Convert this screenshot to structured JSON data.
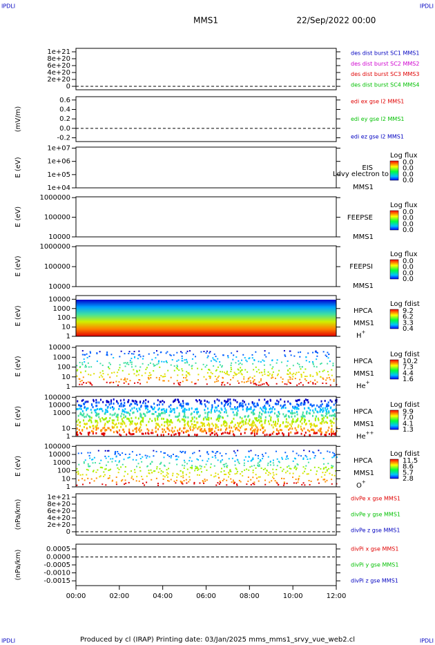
{
  "corner": "IPDLI",
  "header": {
    "spacecraft": "MMS1",
    "date": "22/Sep/2022 00:00"
  },
  "footer": "Produced by cl (IRAP)   Printing date: 03/Jan/2025   mms_mms1_srvy_vue_web2.cl",
  "overlap_text": "Ldvy electron to",
  "chart_data": [
    {
      "type": "line",
      "ylim": [
        -1e+20,
        1.1e+21
      ],
      "yticks": [
        {
          "value": 1e+21,
          "label": "1e+21"
        },
        {
          "value": 8e+20,
          "label": "8e+20"
        },
        {
          "value": 6e+20,
          "label": "6e+20"
        },
        {
          "value": 4e+20,
          "label": "4e+20"
        },
        {
          "value": 2e+20,
          "label": "2e+20"
        },
        0
      ],
      "series": [
        {
          "name": "des dist burst SC1 MMS1",
          "color": "#0000c0"
        },
        {
          "name": "des dist burst SC2 MMS2",
          "color": "#d000d0"
        },
        {
          "name": "des dist burst SC3 MMS3",
          "color": "#e00000"
        },
        {
          "name": "des dist burst SC4 MMS4",
          "color": "#00c000"
        }
      ]
    },
    {
      "type": "line",
      "ylabel": "(mV/m)",
      "ylim": [
        -0.28,
        0.67
      ],
      "yticks": [
        0.6,
        0.4,
        0.2,
        {
          "value": 0,
          "label": "0.0"
        },
        -0.2
      ],
      "series": [
        {
          "name": "edi ex gse l2 MMS1",
          "color": "#e00000"
        },
        {
          "name": "edi ey gse l2 MMS1",
          "color": "#00c000"
        },
        {
          "name": "edi ez gse l2 MMS1",
          "color": "#0000c0"
        }
      ]
    },
    {
      "type": "spectrogram",
      "ylabel": "E (eV)",
      "log": true,
      "ylim": [
        10000,
        12000000
      ],
      "yticks": [
        {
          "value": 10000000,
          "label": "1e+07"
        },
        {
          "value": 1000000,
          "label": "1e+06"
        },
        {
          "value": 100000,
          "label": "1e+05"
        },
        {
          "value": 10000,
          "label": "1e+04"
        }
      ],
      "instrument": "EIS",
      "spacecraft": "MMS1",
      "colorbar": {
        "title": "Log flux",
        "labels": [
          "0.0",
          "0.0",
          "0.0",
          "0.0"
        ]
      }
    },
    {
      "type": "spectrogram",
      "ylabel": "E (eV)",
      "log": true,
      "ylim": [
        10000,
        1100000
      ],
      "yticks": [
        1000000,
        100000,
        10000
      ],
      "instrument": "FEEPSE",
      "spacecraft": "MMS1",
      "colorbar": {
        "title": "Log flux",
        "labels": [
          "0.0",
          "0.0",
          "0.0",
          "0.0"
        ]
      }
    },
    {
      "type": "spectrogram",
      "ylabel": "E (eV)",
      "log": true,
      "ylim": [
        10000,
        1100000
      ],
      "yticks": [
        1000000,
        100000,
        10000
      ],
      "instrument": "FEEPSI",
      "spacecraft": "MMS1",
      "colorbar": {
        "title": "Log flux",
        "labels": [
          "0.0",
          "0.0",
          "0.0",
          "0.0"
        ]
      }
    },
    {
      "type": "spectrogram",
      "ylabel": "E (eV)",
      "log": true,
      "ylim": [
        1,
        25000
      ],
      "yticks": [
        10000,
        1000,
        100,
        10,
        1
      ],
      "fill": "full",
      "instrument": "HPCA",
      "spacecraft": "MMS1",
      "species": {
        "base": "H",
        "charge": "+"
      },
      "colorbar": {
        "title": "Log fdist",
        "labels": [
          "9.2",
          "6.2",
          "3.3",
          "0.4"
        ]
      }
    },
    {
      "type": "spectrogram",
      "ylabel": "E (eV)",
      "log": true,
      "ylim": [
        1,
        14000
      ],
      "yticks": [
        10000,
        1000,
        100,
        10,
        1
      ],
      "fill": "sparse",
      "instrument": "HPCA",
      "spacecraft": "MMS1",
      "species": {
        "base": "He",
        "charge": "+"
      },
      "colorbar": {
        "title": "Log fdist",
        "labels": [
          "10.2",
          "7.3",
          "4.4",
          "1.6"
        ]
      }
    },
    {
      "type": "spectrogram",
      "ylabel": "E (eV)",
      "log": true,
      "ylim": [
        1,
        130000
      ],
      "yticks": [
        100000,
        10000,
        1000,
        10,
        1
      ],
      "fill": "dense",
      "instrument": "HPCA",
      "spacecraft": "MMS1",
      "species": {
        "base": "He",
        "charge": "++"
      },
      "colorbar": {
        "title": "Log fdist",
        "labels": [
          "9.9",
          "7.0",
          "4.1",
          "1.3"
        ]
      }
    },
    {
      "type": "spectrogram",
      "ylabel": "E (eV)",
      "log": true,
      "ylim": [
        1,
        130000
      ],
      "yticks": [
        100000,
        10000,
        1000,
        100,
        10,
        1
      ],
      "fill": "sparse",
      "instrument": "HPCA",
      "spacecraft": "MMS1",
      "species": {
        "base": "O",
        "charge": "+"
      },
      "colorbar": {
        "title": "Log fdist",
        "labels": [
          "11.5",
          "8.6",
          "5.7",
          "2.8"
        ]
      }
    },
    {
      "type": "line",
      "ylabel": "(nPa/km)",
      "ylim": [
        -1e+20,
        1.1e+21
      ],
      "yticks": [
        {
          "value": 1e+21,
          "label": "1e+21"
        },
        {
          "value": 8e+20,
          "label": "8e+20"
        },
        {
          "value": 6e+20,
          "label": "6e+20"
        },
        {
          "value": 4e+20,
          "label": "4e+20"
        },
        {
          "value": 2e+20,
          "label": "2e+20"
        },
        0
      ],
      "series": [
        {
          "name": "divPe x gse MMS1",
          "color": "#e00000"
        },
        {
          "name": "divPe y gse MMS1",
          "color": "#00c000"
        },
        {
          "name": "divPe z gse MMS1",
          "color": "#0000c0"
        }
      ]
    },
    {
      "type": "line",
      "ylabel": "(nPa/km)",
      "ylim": [
        -0.0018,
        0.0008
      ],
      "yticks": [
        {
          "value": 0.0005,
          "label": "0.0005"
        },
        {
          "value": 0,
          "label": "0.0000"
        },
        {
          "value": -0.0005,
          "label": "-0.0005"
        },
        {
          "value": -0.001,
          "label": "-0.0010"
        },
        {
          "value": -0.0015,
          "label": "-0.0015"
        }
      ],
      "series": [
        {
          "name": "divPi x gse MMS1",
          "color": "#e00000"
        },
        {
          "name": "divPi y gse MMS1",
          "color": "#00c000"
        },
        {
          "name": "divPi z gse MMS1",
          "color": "#0000c0"
        }
      ],
      "xticks": [
        "00:00",
        "02:00",
        "04:00",
        "06:00",
        "08:00",
        "10:00",
        "12:00"
      ]
    }
  ]
}
